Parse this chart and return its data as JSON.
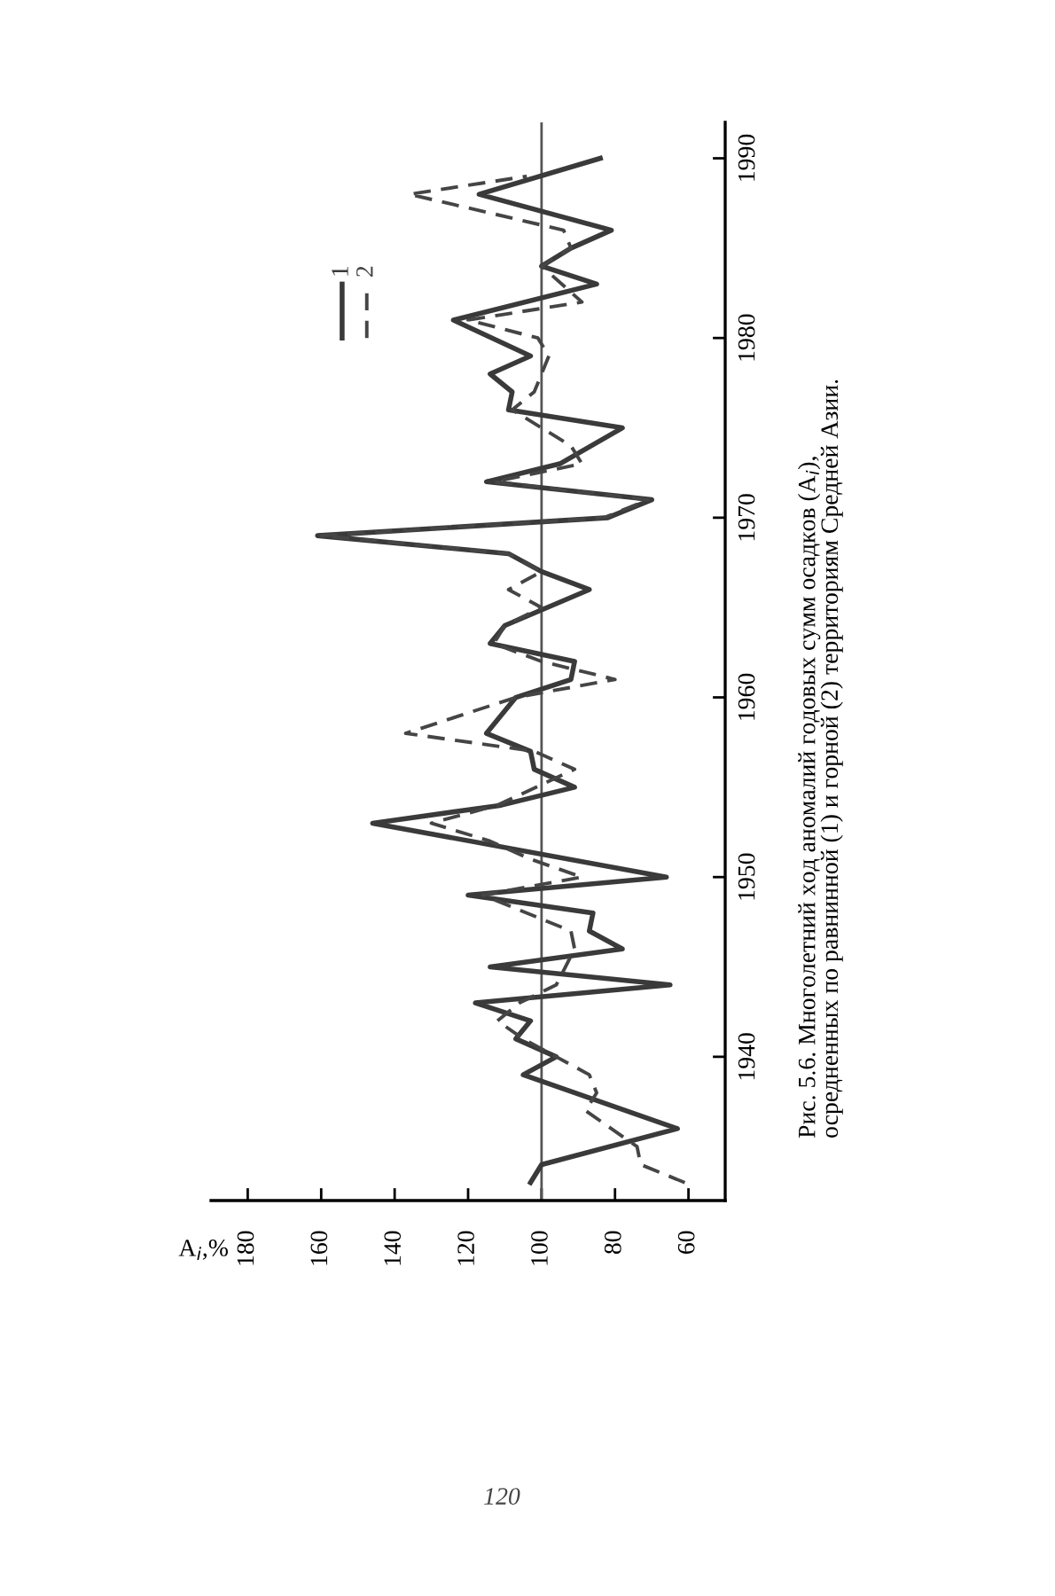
{
  "chart_data": {
    "type": "line",
    "xlabel": "A$_{i}$,%",
    "series": [
      {
        "name": "1",
        "color": "#3a3a3a",
        "line_style": "solid",
        "x": [
          103,
          100,
          63,
          105,
          96,
          107,
          103,
          118,
          65,
          114,
          78,
          87,
          86,
          120,
          66,
          146,
          111,
          91,
          102,
          103,
          115,
          107,
          92,
          91,
          114,
          110,
          87,
          100,
          109,
          161,
          82,
          70,
          115,
          95,
          78,
          109,
          108,
          114,
          103,
          124,
          85,
          100,
          92,
          81,
          117,
          84
        ],
        "values": [
          1933,
          1934,
          1936,
          1939,
          1940,
          1941,
          1942,
          1943,
          1944,
          1945,
          1946,
          1947,
          1948,
          1949,
          1950,
          1953,
          1954,
          1955,
          1956,
          1957,
          1958,
          1960,
          1961,
          1962,
          1963,
          1964,
          1966,
          1967,
          1968,
          1969,
          1970,
          1971,
          1972,
          1973,
          1975,
          1976,
          1977,
          1978,
          1979,
          1981,
          1983,
          1984,
          1985,
          1986,
          1988,
          1990
        ]
      },
      {
        "name": "2",
        "color": "#454545",
        "line_style": "dashed",
        "x": [
          61,
          73,
          74,
          88,
          85,
          87,
          96,
          105,
          112,
          106,
          96,
          91,
          92,
          116,
          89,
          103,
          114,
          130,
          112,
          91,
          102,
          137,
          107,
          80,
          100,
          113,
          110,
          100,
          109,
          100,
          109,
          160,
          83,
          71,
          113,
          89,
          92,
          108,
          102,
          98,
          101,
          120,
          89,
          100,
          92,
          94,
          136,
          104
        ],
        "values": [
          1933,
          1934,
          1935,
          1937,
          1938,
          1939,
          1940,
          1941,
          1942,
          1943,
          1944,
          1946,
          1947,
          1949,
          1950,
          1951,
          1952,
          1953,
          1954,
          1956,
          1957,
          1958,
          1960,
          1961,
          1962,
          1963,
          1964,
          1965,
          1966,
          1967,
          1968,
          1969,
          1970,
          1971,
          1972,
          1973,
          1974,
          1976,
          1977,
          1979,
          1980,
          1981,
          1982,
          1984,
          1985,
          1986,
          1988,
          1989
        ]
      }
    ],
    "xlim": [
      190,
      50
    ],
    "xticks": [
      180,
      160,
      140,
      120,
      100,
      80,
      60
    ],
    "ylim": [
      1932,
      1992
    ],
    "yticks": [
      1940,
      1950,
      1960,
      1970,
      1980,
      1990
    ],
    "ref_lines": [
      {
        "axis": "x",
        "value": 100,
        "color": "#555555"
      }
    ],
    "legend": "top left",
    "annotations": [
      "Рис. 5.6. Многолетний ход аномалий годовых сумм осадков (A$_{i}$), осредненных по равнинной (1) и горной (2) территориям Средней Азии.",
      "120"
    ]
  }
}
